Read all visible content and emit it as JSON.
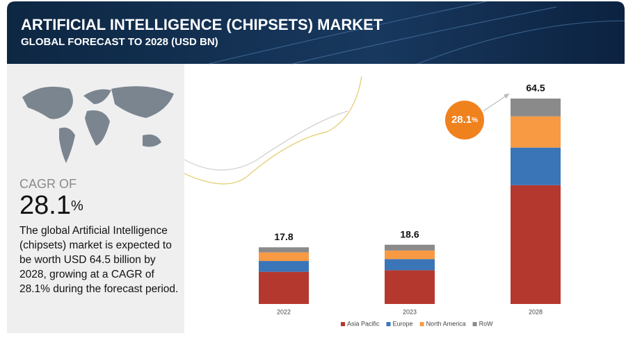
{
  "header": {
    "title": "ARTIFICIAL INTELLIGENCE (CHIPSETS) MARKET",
    "subtitle": "GLOBAL FORECAST TO 2028 (USD BN)"
  },
  "sidebar": {
    "cagr_label": "CAGR OF",
    "cagr_value": "28.1",
    "cagr_unit": "%",
    "description": "The global Artificial Intelligence (chipsets) market is expected to be worth USD 64.5 billion by 2028, growing at a CAGR of 28.1% during the forecast period."
  },
  "chart_data": {
    "type": "stacked-bar",
    "categories": [
      "2022",
      "2023",
      "2028"
    ],
    "series": [
      {
        "name": "Asia Pacific",
        "color": "#b5382f",
        "values": [
          10.1,
          10.6,
          37.3
        ]
      },
      {
        "name": "Europe",
        "color": "#3a75b8",
        "values": [
          3.4,
          3.5,
          11.8
        ]
      },
      {
        "name": "North America",
        "color": "#f79a43",
        "values": [
          2.7,
          2.7,
          9.8
        ]
      },
      {
        "name": "RoW",
        "color": "#8a8a8a",
        "values": [
          1.6,
          1.8,
          5.6
        ]
      }
    ],
    "totals": [
      17.8,
      18.6,
      64.5
    ],
    "annotation": {
      "value": "28.1",
      "unit": "%"
    },
    "legend": "bottom"
  }
}
